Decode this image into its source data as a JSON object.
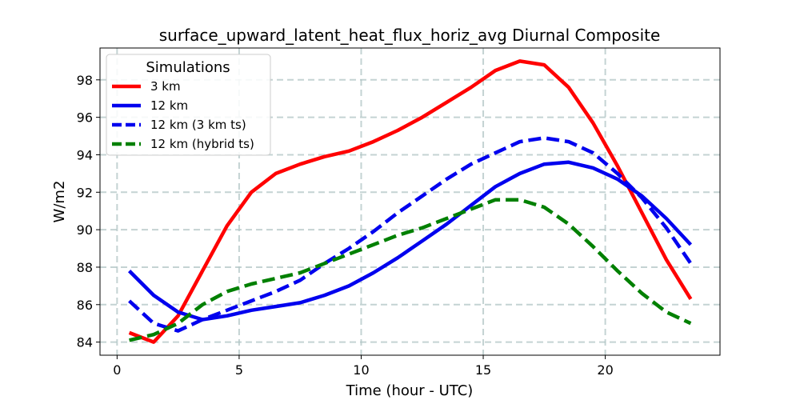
{
  "chart_data": {
    "type": "line",
    "title": "surface_upward_latent_heat_flux_horiz_avg Diurnal Composite",
    "xlabel": "Time (hour - UTC)",
    "ylabel": "W/m2",
    "xlim": [
      -0.7,
      24.7
    ],
    "ylim": [
      83.3,
      99.7
    ],
    "xticks": [
      0,
      5,
      10,
      15,
      20
    ],
    "yticks": [
      84,
      86,
      88,
      90,
      92,
      94,
      96,
      98
    ],
    "grid": true,
    "legend": {
      "title": "Simulations",
      "position": "top-left"
    },
    "x": [
      0.5,
      1.5,
      2.5,
      3.5,
      4.5,
      5.5,
      6.5,
      7.5,
      8.5,
      9.5,
      10.5,
      11.5,
      12.5,
      13.5,
      14.5,
      15.5,
      16.5,
      17.5,
      18.5,
      19.5,
      20.5,
      21.5,
      22.5,
      23.5
    ],
    "series": [
      {
        "name": "3 km",
        "color": "#ff0000",
        "dash": "solid",
        "values": [
          84.5,
          84.0,
          85.4,
          87.8,
          90.2,
          92.0,
          93.0,
          93.5,
          93.9,
          94.2,
          94.7,
          95.3,
          96.0,
          96.8,
          97.6,
          98.5,
          99.0,
          98.8,
          97.6,
          95.7,
          93.4,
          90.9,
          88.4,
          86.3
        ]
      },
      {
        "name": "12 km",
        "color": "#0000ee",
        "dash": "solid",
        "values": [
          87.8,
          86.5,
          85.6,
          85.2,
          85.4,
          85.7,
          85.9,
          86.1,
          86.5,
          87.0,
          87.7,
          88.5,
          89.4,
          90.3,
          91.3,
          92.3,
          93.0,
          93.5,
          93.6,
          93.3,
          92.7,
          91.8,
          90.6,
          89.2
        ]
      },
      {
        "name": "12 km (3 km ts)",
        "color": "#0000ee",
        "dash": "dashed",
        "values": [
          86.2,
          85.0,
          84.6,
          85.2,
          85.7,
          86.2,
          86.7,
          87.3,
          88.2,
          89.0,
          89.9,
          90.9,
          91.8,
          92.7,
          93.5,
          94.1,
          94.7,
          94.9,
          94.7,
          94.1,
          93.0,
          91.7,
          90.1,
          88.2
        ]
      },
      {
        "name": "12 km (hybrid ts)",
        "color": "#008000",
        "dash": "dashed",
        "values": [
          84.1,
          84.4,
          85.0,
          86.0,
          86.7,
          87.1,
          87.4,
          87.7,
          88.2,
          88.7,
          89.2,
          89.7,
          90.1,
          90.6,
          91.1,
          91.6,
          91.6,
          91.2,
          90.3,
          89.1,
          87.8,
          86.6,
          85.6,
          85.0
        ]
      }
    ]
  }
}
